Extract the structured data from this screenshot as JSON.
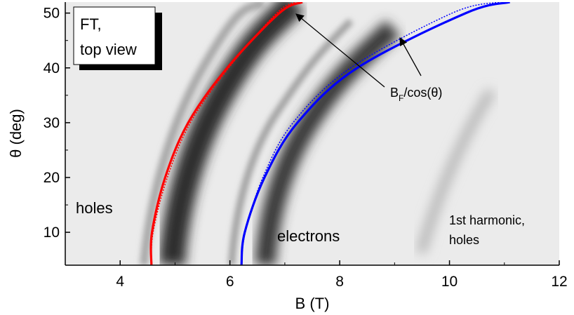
{
  "chart_data": {
    "type": "line",
    "xlabel": "B (T)",
    "ylabel": "θ (deg)",
    "xlim": [
      3,
      12
    ],
    "xticks": [
      4,
      6,
      8,
      10,
      12
    ],
    "ylim": [
      4,
      52
    ],
    "yticks": [
      10,
      20,
      30,
      40,
      50
    ],
    "grid": false,
    "series": [
      {
        "color": "#ff0000",
        "style": "solid",
        "x": [
          4.57,
          4.58,
          4.82,
          5.24,
          5.95,
          6.9,
          7.32
        ],
        "values": [
          4,
          10,
          20,
          30,
          40,
          50,
          52
        ]
      },
      {
        "color": "#ff0000",
        "style": "dotted",
        "x": [
          4.57,
          4.6,
          4.86,
          5.28,
          5.98,
          6.85,
          7.2
        ],
        "values": [
          4,
          10,
          20,
          30,
          40,
          50,
          52
        ]
      },
      {
        "color": "#0000ff",
        "style": "solid",
        "x": [
          6.21,
          6.27,
          6.63,
          7.23,
          8.32,
          10.3,
          11.1
        ],
        "values": [
          4,
          10,
          20,
          30,
          40,
          50,
          52
        ]
      },
      {
        "color": "#0000ff",
        "style": "dotted",
        "x": [
          6.21,
          6.28,
          6.6,
          7.15,
          8.2,
          10.05,
          10.9
        ],
        "values": [
          4,
          10,
          20,
          30,
          40,
          50,
          52
        ]
      }
    ],
    "annotations": [
      {
        "lines": [
          "FT,",
          "top view"
        ]
      },
      {
        "text": "holes",
        "color": "#ff0000"
      },
      {
        "text": "electrons",
        "color": "#0000ff"
      },
      {
        "lines": [
          "1st harmonic,",
          "holes"
        ]
      },
      {
        "parts": [
          "B",
          "F",
          "/cos(θ)"
        ]
      }
    ]
  }
}
